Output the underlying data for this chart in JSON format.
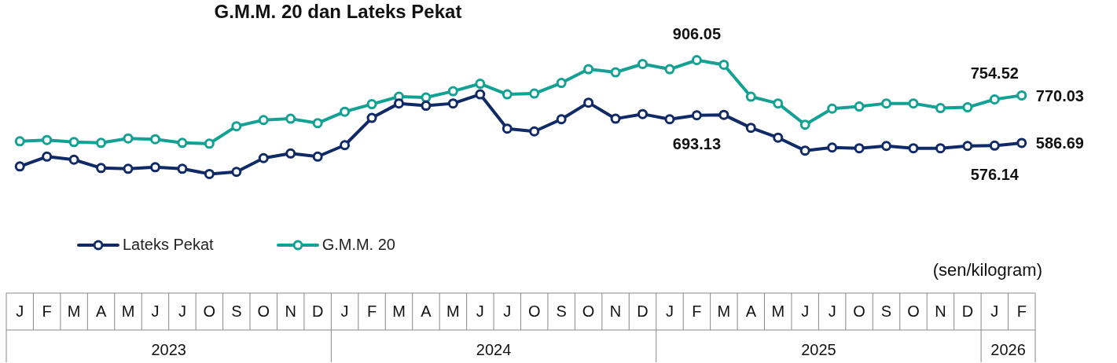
{
  "chart_data": {
    "type": "line",
    "title": "G.M.M. 20 dan Lateks Pekat",
    "categories": [
      "J",
      "F",
      "M",
      "A",
      "M",
      "J",
      "J",
      "O",
      "S",
      "O",
      "N",
      "D",
      "J",
      "F",
      "M",
      "A",
      "M",
      "J",
      "J",
      "O",
      "S",
      "O",
      "N",
      "D",
      "J",
      "F",
      "M",
      "A",
      "M",
      "J",
      "J",
      "O",
      "S",
      "O",
      "N",
      "D",
      "J",
      "F"
    ],
    "annotations": [
      "(sen/kilogram)",
      "2023",
      "2024",
      "2025",
      "2026"
    ],
    "tick_labels": "x",
    "legend": "bottom left",
    "marker": "circle",
    "line_style": "solid",
    "series": [
      {
        "name": "Lateks Pekat",
        "color": "#0f2a66",
        "values": [
          496,
          534,
          522,
          490,
          487,
          493,
          487,
          467,
          475,
          528,
          546,
          534,
          578,
          683,
          739,
          730,
          739,
          774,
          642,
          631,
          678,
          742,
          680,
          698,
          678,
          693.13,
          695,
          645,
          607,
          557,
          569,
          566,
          575,
          566,
          566,
          575,
          576.14,
          586.69
        ],
        "value_labels": [
          null,
          null,
          null,
          null,
          null,
          null,
          null,
          null,
          null,
          null,
          null,
          null,
          null,
          null,
          null,
          null,
          null,
          null,
          null,
          null,
          null,
          null,
          null,
          null,
          null,
          "693.13",
          null,
          null,
          null,
          null,
          null,
          null,
          null,
          null,
          null,
          null,
          "576.14",
          "586.69"
        ]
      },
      {
        "name": "G.M.M. 20",
        "color": "#12a192",
        "values": [
          593,
          598,
          590,
          587,
          604,
          601,
          587,
          584,
          651,
          675,
          680,
          663,
          707,
          736,
          765,
          762,
          786,
          815,
          774,
          777,
          818,
          871,
          859,
          891,
          871,
          906.05,
          888,
          765,
          739,
          657,
          719,
          727,
          739,
          739,
          721,
          724,
          754.52,
          770.03
        ],
        "value_labels": [
          null,
          null,
          null,
          null,
          null,
          null,
          null,
          null,
          null,
          null,
          null,
          null,
          null,
          null,
          null,
          null,
          null,
          null,
          null,
          null,
          null,
          null,
          null,
          null,
          null,
          "906.05",
          null,
          null,
          null,
          null,
          null,
          null,
          null,
          null,
          null,
          null,
          "754.52",
          "770.03"
        ]
      }
    ]
  }
}
